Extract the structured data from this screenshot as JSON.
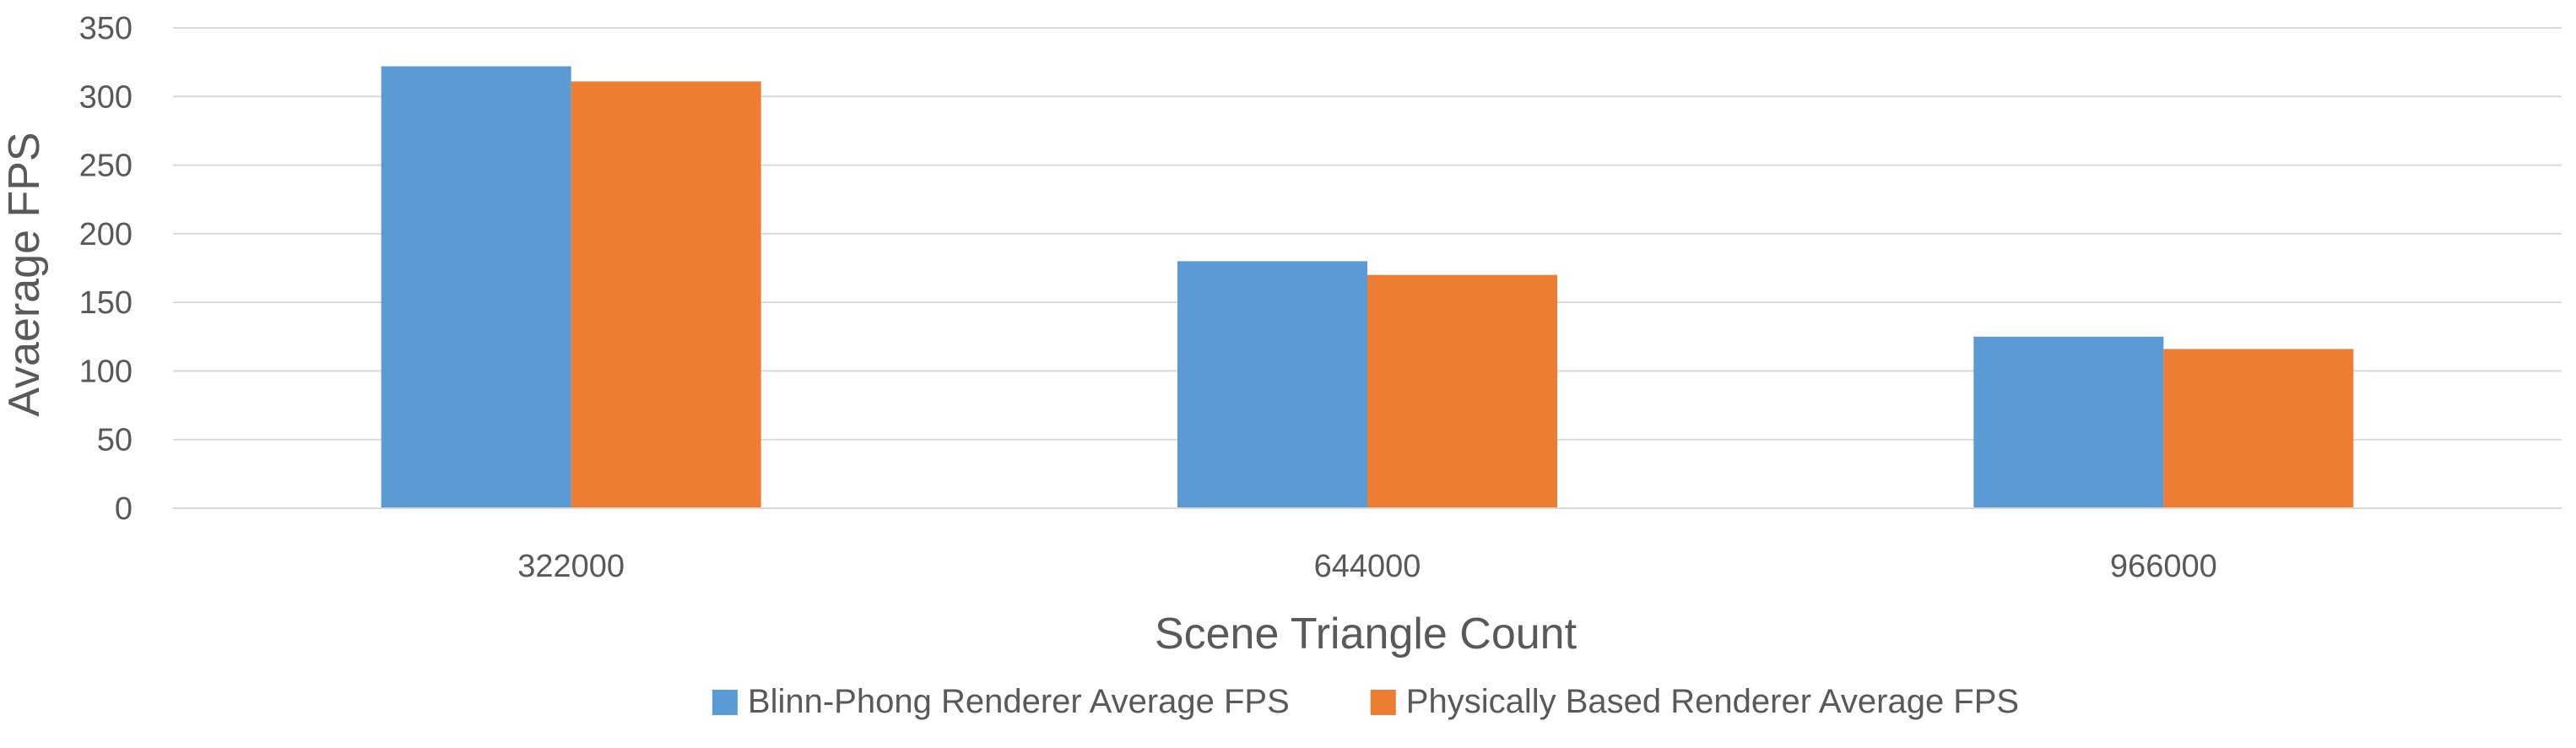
{
  "chart_data": {
    "type": "bar",
    "title": "",
    "xlabel": "Scene Triangle Count",
    "ylabel": "Avaerage FPS",
    "categories": [
      "322000",
      "644000",
      "966000"
    ],
    "series": [
      {
        "name": "Blinn-Phong Renderer Average FPS",
        "values": [
          322,
          180,
          125
        ],
        "color": "#5B9BD5"
      },
      {
        "name": "Physically Based Renderer Average FPS",
        "values": [
          311,
          170,
          116
        ],
        "color": "#ED7D31"
      }
    ],
    "ylim": [
      0,
      350
    ],
    "yticks": [
      0,
      50,
      100,
      150,
      200,
      250,
      300,
      350
    ],
    "grid": true,
    "legend_position": "bottom"
  }
}
